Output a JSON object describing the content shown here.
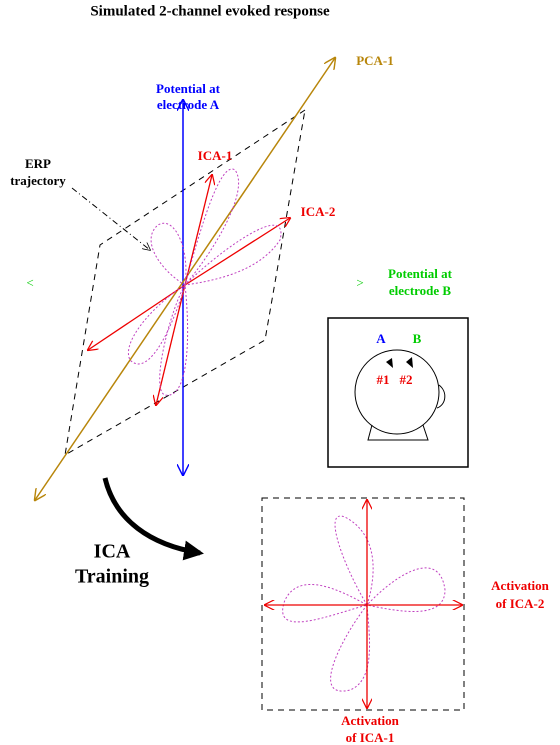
{
  "title": "Simulated 2-channel evoked response",
  "labels": {
    "pca1": "PCA-1",
    "electrode_a": [
      "Potential at",
      "electrode A"
    ],
    "erp": [
      "ERP",
      "trajectory"
    ],
    "ica1": "ICA-1",
    "ica2": "ICA-2",
    "left_mark": "<",
    "right_mark": ">",
    "electrode_b": [
      "Potential at",
      "electrode B"
    ],
    "head": {
      "a": "A",
      "b": "B",
      "s1": "#1",
      "s2": "#2"
    },
    "training": [
      "ICA",
      "Training"
    ],
    "activation_ica2": [
      "Activation",
      "of ICA-2"
    ],
    "activation_ica1": [
      "Activation",
      "of ICA-1"
    ]
  }
}
